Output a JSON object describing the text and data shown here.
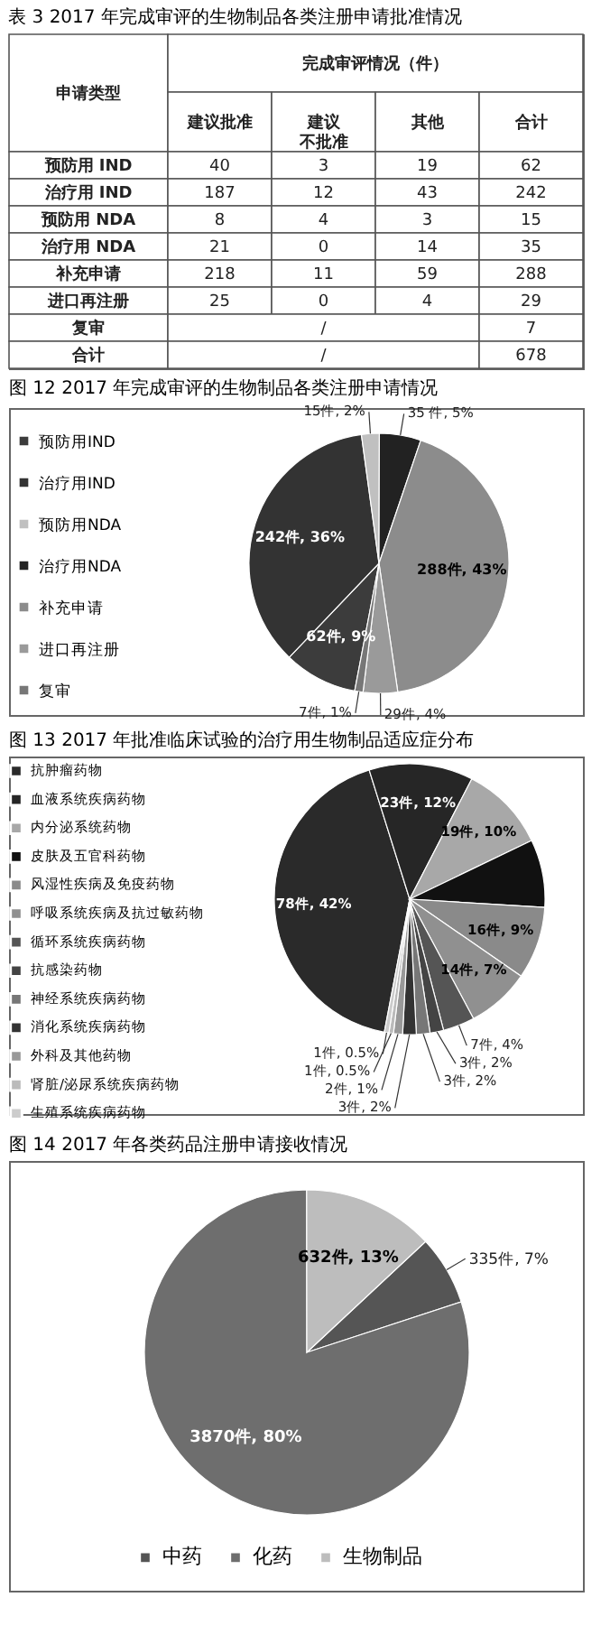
{
  "chart_data": [
    {
      "type": "other",
      "title": "表 3 2017 年完成审评的生物制品各类注册申请批准情况",
      "ylabel": "申请类型",
      "xlabel": "完成审评情况（件）",
      "categories": [
        "建议批准",
        "建议不批准",
        "其他",
        "合计"
      ],
      "y_categories": [
        "预防用 IND",
        "治疗用 IND",
        "预防用 NDA",
        "治疗用 NDA",
        "补充申请",
        "进口再注册",
        "复审",
        "合计"
      ],
      "cell_labels": [
        [
          "40",
          "3",
          "19",
          "62"
        ],
        [
          "187",
          "12",
          "43",
          "242"
        ],
        [
          "8",
          "4",
          "3",
          "15"
        ],
        [
          "21",
          "0",
          "14",
          "35"
        ],
        [
          "218",
          "11",
          "59",
          "288"
        ],
        [
          "25",
          "0",
          "4",
          "29"
        ],
        [
          "/",
          null,
          null,
          "7"
        ],
        [
          "/",
          null,
          null,
          "678"
        ]
      ]
    },
    {
      "type": "pie",
      "title": "图 12 2017 年完成审评的生物制品各类注册申请情况",
      "legend": "left",
      "categories": [
        "预防用IND",
        "治疗用IND",
        "预防用NDA",
        "治疗用NDA",
        "补充申请",
        "进口再注册",
        "复审"
      ],
      "values": [
        62,
        242,
        15,
        35,
        288,
        29,
        7
      ],
      "colors": [
        "#3c3c3c",
        "#333333",
        "#c0c0c0",
        "#222222",
        "#8c8c8c",
        "#9a9a9a",
        "#777777"
      ],
      "value_labels": [
        "62件, 9%",
        "242件, 36%",
        "15件, 2%",
        "35 件, 5%",
        "288件, 43%",
        "29件, 4%",
        "7件, 1%"
      ]
    },
    {
      "type": "pie",
      "title": "图 13 2017 年批准临床试验的治疗用生物制品适应症分布",
      "legend": "left",
      "categories": [
        "抗肿瘤药物",
        "血液系统疾病药物",
        "内分泌系统药物",
        "皮肤及五官科药物",
        "风湿性疾病及免疫药物",
        "呼吸系统疾病及抗过敏药物",
        "循环系统疾病药物",
        "抗感染药物",
        "神经系统疾病药物",
        "消化系统疾病药物",
        "外科及其他药物",
        "肾脏/泌尿系统疾病药物",
        "生殖系统疾病药物"
      ],
      "values": [
        78,
        23,
        19,
        15,
        16,
        14,
        7,
        3,
        3,
        3,
        2,
        1,
        1
      ],
      "colors": [
        "#2a2a2a",
        "#262626",
        "#a8a8a8",
        "#111111",
        "#8a8a8a",
        "#909090",
        "#555555",
        "#444444",
        "#777777",
        "#333333",
        "#999999",
        "#bbbbbb",
        "#cccccc"
      ],
      "value_labels": [
        "78件, 42%",
        "23件, 12%",
        "19件, 10%",
        null,
        "16件, 9%",
        "14件, 7%",
        "7件, 4%",
        "3件, 2%",
        "3件, 2%",
        "3件, 2%",
        "2件, 1%",
        "1件, 0.5%",
        "1件, 0.5%"
      ]
    },
    {
      "type": "pie",
      "title": "图 14 2017 年各类药品注册申请接收情况",
      "legend": "bottom",
      "categories": [
        "中药",
        "化药",
        "生物制品"
      ],
      "values": [
        335,
        3870,
        632
      ],
      "colors": [
        "#555555",
        "#6e6e6e",
        "#bdbdbd"
      ],
      "value_labels": [
        "335件, 7%",
        "3870件, 80%",
        "632件, 13%"
      ]
    }
  ]
}
